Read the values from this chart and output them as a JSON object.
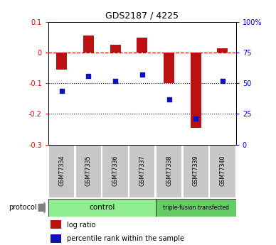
{
  "title": "GDS2187 / 4225",
  "samples": [
    "GSM77334",
    "GSM77335",
    "GSM77336",
    "GSM77337",
    "GSM77338",
    "GSM77339",
    "GSM77340"
  ],
  "log_ratio": [
    -0.055,
    0.055,
    0.025,
    0.05,
    -0.1,
    -0.245,
    0.015
  ],
  "percentile_rank": [
    44,
    56,
    52,
    57,
    37,
    21,
    52
  ],
  "ylim_left": [
    -0.3,
    0.1
  ],
  "ylim_right": [
    0,
    100
  ],
  "bar_color": "#bb1111",
  "dot_color": "#1111bb",
  "control_group": [
    0,
    1,
    2,
    3
  ],
  "triple_group": [
    4,
    5,
    6
  ],
  "control_label": "control",
  "triple_label": "triple-fusion transfected",
  "protocol_label": "protocol",
  "legend_bar": "log ratio",
  "legend_dot": "percentile rank within the sample",
  "control_color": "#90ee90",
  "triple_color": "#66cc66",
  "sample_box_color": "#c8c8c8",
  "dashed_zero_color": "#cc0000",
  "dotted_line_color": "#000000",
  "left_tick_labels": [
    "-0.3",
    "-0.2",
    "-0.1",
    "0",
    "0.1"
  ],
  "left_tick_values": [
    -0.3,
    -0.2,
    -0.1,
    0.0,
    0.1
  ],
  "right_tick_labels": [
    "0",
    "25",
    "50",
    "75",
    "100%"
  ],
  "right_tick_values": [
    0,
    25,
    50,
    75,
    100
  ]
}
